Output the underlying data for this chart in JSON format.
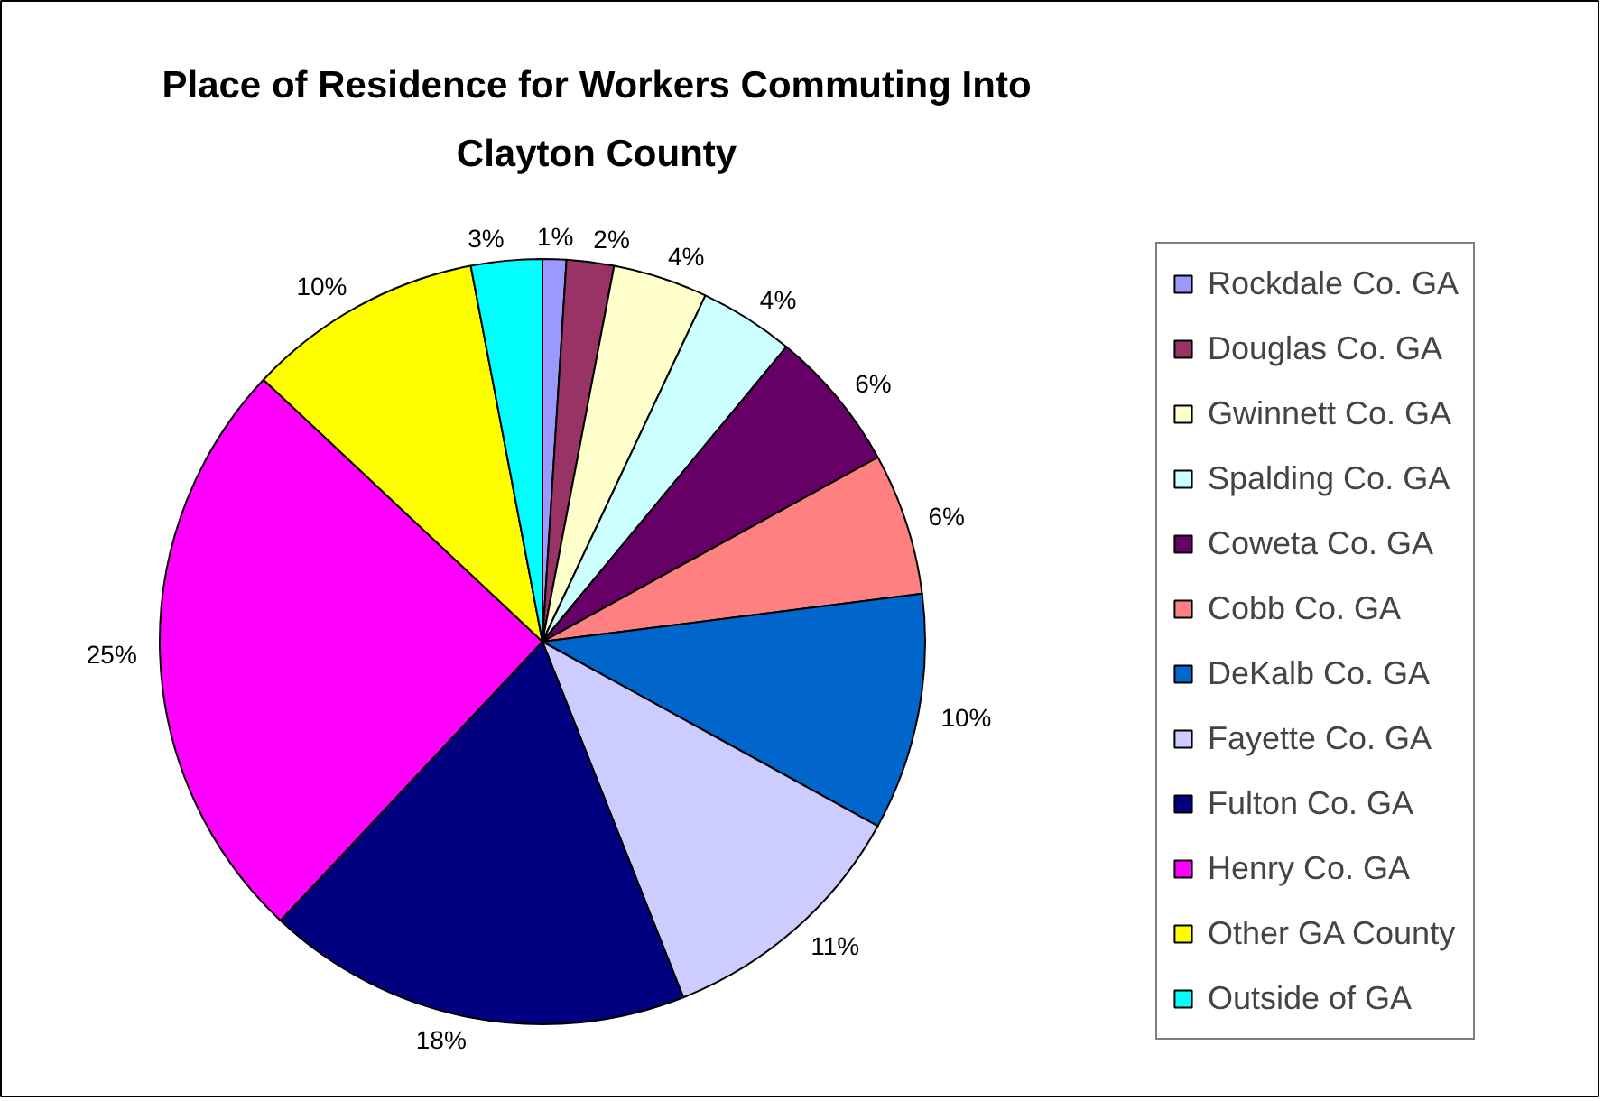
{
  "chart_data": {
    "type": "pie",
    "title": "Place of Residence for Workers Commuting Into Clayton County",
    "categories": [
      "Rockdale Co. GA",
      "Douglas Co. GA",
      "Gwinnett Co. GA",
      "Spalding Co. GA",
      "Coweta Co. GA",
      "Cobb Co. GA",
      "DeKalb Co. GA",
      "Fayette Co. GA",
      "Fulton Co. GA",
      "Henry Co. GA",
      "Other GA County",
      "Outside of GA"
    ],
    "values": [
      1,
      2,
      4,
      4,
      6,
      6,
      10,
      11,
      18,
      25,
      10,
      3
    ],
    "colors": [
      "#9999ff",
      "#993366",
      "#ffffcc",
      "#ccffff",
      "#660066",
      "#ff8080",
      "#0066cc",
      "#ccccff",
      "#000080",
      "#ff00ff",
      "#ffff00",
      "#00ffff"
    ],
    "value_labels": [
      "1%",
      "2%",
      "4%",
      "4%",
      "6%",
      "6%",
      "10%",
      "11%",
      "18%",
      "25%",
      "10%",
      "3%"
    ],
    "legend": "right"
  }
}
